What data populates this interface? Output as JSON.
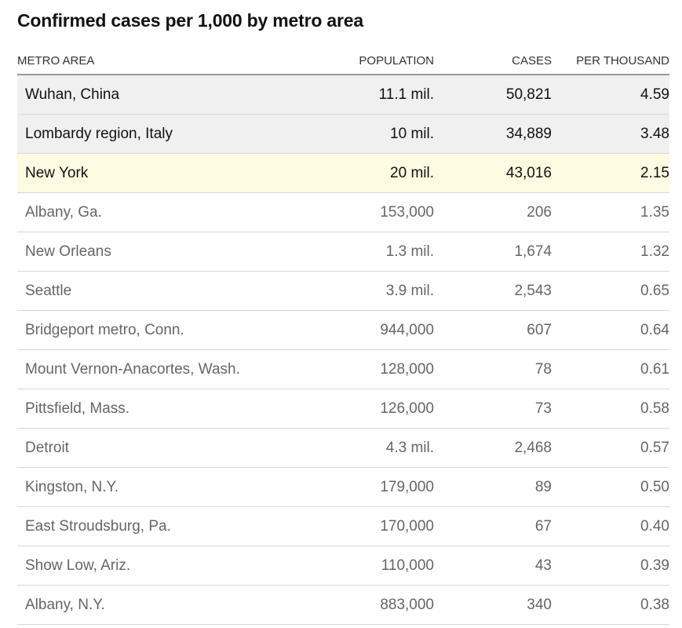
{
  "chart_data": {
    "type": "table",
    "title": "Confirmed cases per 1,000 by metro area",
    "columns": [
      "METRO AREA",
      "POPULATION",
      "CASES",
      "PER THOUSAND"
    ],
    "rows": [
      {
        "metro": "Wuhan, China",
        "population": "11.1 mil.",
        "cases": "50,821",
        "per_thousand": "4.59",
        "highlight": "gray"
      },
      {
        "metro": "Lombardy region, Italy",
        "population": "10 mil.",
        "cases": "34,889",
        "per_thousand": "3.48",
        "highlight": "gray"
      },
      {
        "metro": "New York",
        "population": "20 mil.",
        "cases": "43,016",
        "per_thousand": "2.15",
        "highlight": "yellow"
      },
      {
        "metro": "Albany, Ga.",
        "population": "153,000",
        "cases": "206",
        "per_thousand": "1.35",
        "highlight": "none"
      },
      {
        "metro": "New Orleans",
        "population": "1.3 mil.",
        "cases": "1,674",
        "per_thousand": "1.32",
        "highlight": "none"
      },
      {
        "metro": "Seattle",
        "population": "3.9 mil.",
        "cases": "2,543",
        "per_thousand": "0.65",
        "highlight": "none"
      },
      {
        "metro": "Bridgeport metro, Conn.",
        "population": "944,000",
        "cases": "607",
        "per_thousand": "0.64",
        "highlight": "none"
      },
      {
        "metro": "Mount Vernon-Anacortes, Wash.",
        "population": "128,000",
        "cases": "78",
        "per_thousand": "0.61",
        "highlight": "none"
      },
      {
        "metro": "Pittsfield, Mass.",
        "population": "126,000",
        "cases": "73",
        "per_thousand": "0.58",
        "highlight": "none"
      },
      {
        "metro": "Detroit",
        "population": "4.3 mil.",
        "cases": "2,468",
        "per_thousand": "0.57",
        "highlight": "none"
      },
      {
        "metro": "Kingston, N.Y.",
        "population": "179,000",
        "cases": "89",
        "per_thousand": "0.50",
        "highlight": "none"
      },
      {
        "metro": "East Stroudsburg, Pa.",
        "population": "170,000",
        "cases": "67",
        "per_thousand": "0.40",
        "highlight": "none"
      },
      {
        "metro": "Show Low, Ariz.",
        "population": "110,000",
        "cases": "43",
        "per_thousand": "0.39",
        "highlight": "none"
      },
      {
        "metro": "Albany, N.Y.",
        "population": "883,000",
        "cases": "340",
        "per_thousand": "0.38",
        "highlight": "none"
      }
    ]
  },
  "colors": {
    "highlight_gray": "#f0f0f0",
    "highlight_yellow": "#fdfbe1",
    "text_strong": "#121212",
    "text_muted": "#666666"
  }
}
